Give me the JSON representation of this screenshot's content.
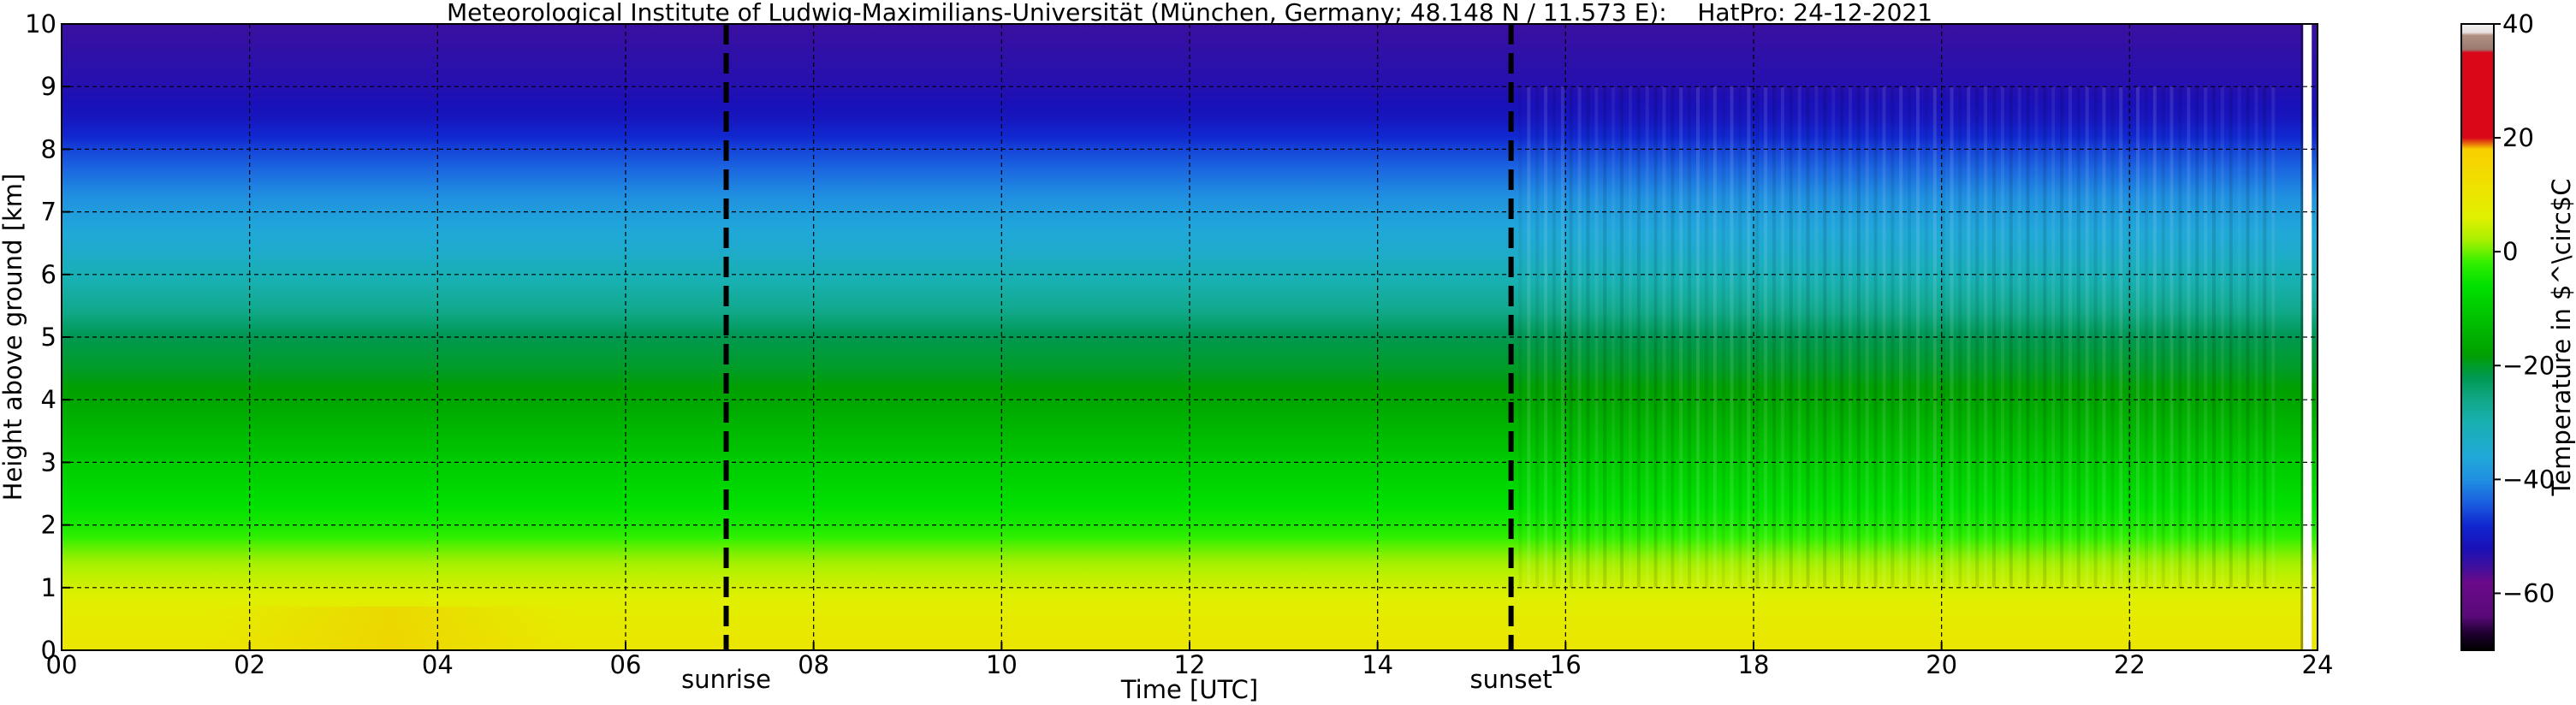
{
  "chart_data": {
    "type": "heatmap",
    "title": "Meteorological Institute of Ludwig-Maximilians-Universität (München, Germany; 48.148 N / 11.573 E):    HatPro: 24-12-2021",
    "xlabel": "Time [UTC]",
    "ylabel": "Height above ground [km]",
    "colorbar_label": "Temperature in $^\\circ$C",
    "xlim": [
      0,
      24
    ],
    "ylim": [
      0,
      10
    ],
    "x_ticks": [
      0,
      2,
      4,
      6,
      8,
      10,
      12,
      14,
      16,
      18,
      20,
      22,
      24
    ],
    "x_tick_labels": [
      "00",
      "02",
      "04",
      "06",
      "08",
      "10",
      "12",
      "14",
      "16",
      "18",
      "20",
      "22",
      "24"
    ],
    "y_ticks": [
      0,
      1,
      2,
      3,
      4,
      5,
      6,
      7,
      8,
      9,
      10
    ],
    "y_tick_labels": [
      "0",
      "1",
      "2",
      "3",
      "4",
      "5",
      "6",
      "7",
      "8",
      "9",
      "10"
    ],
    "grid": true,
    "colorbar": {
      "range": [
        -70,
        40
      ],
      "ticks": [
        40,
        20,
        0,
        -20,
        -40,
        -60
      ],
      "tick_labels": [
        "40",
        "20",
        "0",
        "−20",
        "−40",
        "−60"
      ],
      "stops": [
        {
          "value": -70,
          "color": "#000000"
        },
        {
          "value": -67,
          "color": "#200030"
        },
        {
          "value": -64,
          "color": "#5a0a7a"
        },
        {
          "value": -58,
          "color": "#6a0a8a"
        },
        {
          "value": -55,
          "color": "#3a10a0"
        },
        {
          "value": -52,
          "color": "#1a10b8"
        },
        {
          "value": -48,
          "color": "#1028d0"
        },
        {
          "value": -44,
          "color": "#1a60e0"
        },
        {
          "value": -40,
          "color": "#2090e0"
        },
        {
          "value": -36,
          "color": "#20a8d8"
        },
        {
          "value": -30,
          "color": "#18b0b0"
        },
        {
          "value": -26,
          "color": "#10a888"
        },
        {
          "value": -22,
          "color": "#009850"
        },
        {
          "value": -18,
          "color": "#00a000"
        },
        {
          "value": -12,
          "color": "#00c000"
        },
        {
          "value": -6,
          "color": "#00e000"
        },
        {
          "value": -2,
          "color": "#30f000"
        },
        {
          "value": 2,
          "color": "#a8f000"
        },
        {
          "value": 6,
          "color": "#e0f000"
        },
        {
          "value": 12,
          "color": "#f0e000"
        },
        {
          "value": 18,
          "color": "#f8d000"
        },
        {
          "value": 20,
          "color": "#d80818"
        },
        {
          "value": 35,
          "color": "#d80818"
        },
        {
          "value": 35.5,
          "color": "#9a7a70"
        },
        {
          "value": 38,
          "color": "#b09080"
        },
        {
          "value": 38.5,
          "color": "#e8e0e0"
        },
        {
          "value": 40,
          "color": "#f0f0f0"
        }
      ]
    },
    "temperature_profile": {
      "heights_km": [
        0,
        0.5,
        1.0,
        1.5,
        2.0,
        3.0,
        4.0,
        4.5,
        5.0,
        5.5,
        6.0,
        6.5,
        7.0,
        7.5,
        8.0,
        8.5,
        9.0,
        9.5,
        10.0
      ],
      "temperatures_c": [
        10,
        8,
        5,
        1,
        -4,
        -10,
        -17,
        -20,
        -22,
        -27,
        -31,
        -35,
        -38,
        -42,
        -46,
        -51,
        -53,
        -54,
        -55
      ]
    },
    "annotations": [
      {
        "label": "sunrise",
        "x": 7.07
      },
      {
        "label": "sunset",
        "x": 15.42
      }
    ]
  }
}
